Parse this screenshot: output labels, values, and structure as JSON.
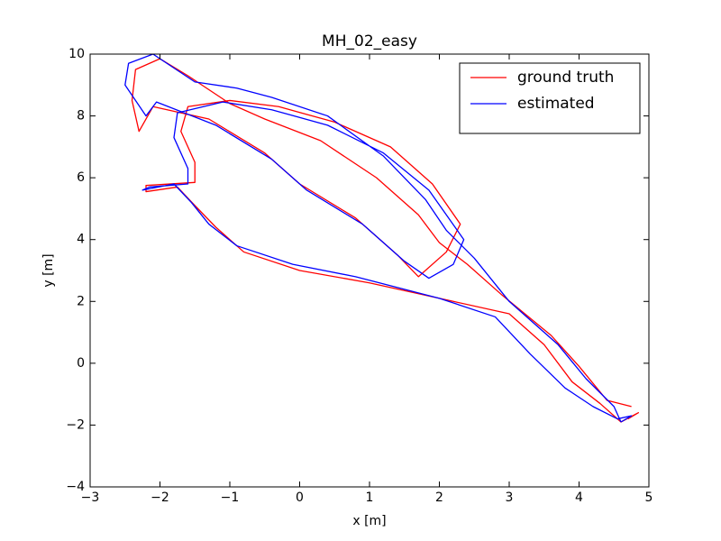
{
  "chart_data": {
    "type": "line",
    "title": "MH_02_easy",
    "xlabel": "x [m]",
    "ylabel": "y [m]",
    "xlim": [
      -3,
      5
    ],
    "ylim": [
      -4,
      10
    ],
    "xticks": [
      {
        "value": -3,
        "label": "−3"
      },
      {
        "value": -2,
        "label": "−2"
      },
      {
        "value": -1,
        "label": "−1"
      },
      0,
      1,
      2,
      3,
      4,
      5
    ],
    "yticks": [
      {
        "value": -4,
        "label": "−4"
      },
      {
        "value": -2,
        "label": "−2"
      },
      0,
      2,
      4,
      6,
      8,
      10
    ],
    "legend": "upper right",
    "series": [
      {
        "name": "ground truth",
        "color": "#ff0000",
        "x": [
          4.7,
          4.85,
          4.6,
          4.3,
          3.9,
          3.5,
          3.0,
          2.2,
          1.0,
          0.0,
          -0.8,
          -1.2,
          -1.5,
          -1.75,
          -2.2,
          -2.2,
          -1.5,
          -1.5,
          -1.7,
          -1.6,
          -1.0,
          -0.3,
          0.5,
          1.3,
          1.9,
          2.3,
          2.1,
          1.7,
          1.4,
          0.8,
          0.0,
          -0.5,
          -1.3,
          -2.1,
          -2.3,
          -2.4,
          -2.35,
          -2.0,
          -1.6,
          -1.0,
          -0.5,
          0.3,
          1.1,
          1.7,
          2.0,
          2.4,
          2.9,
          3.6,
          4.0,
          4.4,
          4.75
        ],
        "values": [
          -1.8,
          -1.6,
          -1.9,
          -1.3,
          -0.6,
          0.6,
          1.6,
          2.0,
          2.6,
          3.0,
          3.6,
          4.4,
          5.1,
          5.7,
          5.55,
          5.75,
          5.85,
          6.5,
          7.5,
          8.3,
          8.5,
          8.3,
          7.8,
          7.0,
          5.8,
          4.5,
          3.6,
          2.8,
          3.5,
          4.7,
          5.8,
          6.8,
          7.9,
          8.3,
          7.5,
          8.5,
          9.5,
          9.85,
          9.3,
          8.4,
          7.9,
          7.2,
          6.0,
          4.8,
          3.9,
          3.2,
          2.2,
          0.9,
          -0.1,
          -1.2,
          -1.4
        ]
      },
      {
        "name": "estimated",
        "color": "#0000ff",
        "x": [
          4.6,
          4.75,
          4.55,
          4.2,
          3.8,
          3.3,
          2.8,
          2.0,
          0.8,
          -0.1,
          -0.9,
          -1.3,
          -1.55,
          -1.8,
          -2.25,
          -2.15,
          -1.6,
          -1.6,
          -1.8,
          -1.75,
          -1.1,
          -0.4,
          0.4,
          1.2,
          1.85,
          2.35,
          2.2,
          1.85,
          1.5,
          0.9,
          0.1,
          -0.4,
          -1.2,
          -2.05,
          -2.2,
          -2.5,
          -2.45,
          -2.1,
          -1.5,
          -0.9,
          -0.4,
          0.4,
          1.2,
          1.8,
          2.1,
          2.5,
          3.0,
          3.7,
          4.1,
          4.5,
          4.6
        ],
        "values": [
          -1.9,
          -1.7,
          -1.8,
          -1.4,
          -0.8,
          0.3,
          1.5,
          2.1,
          2.8,
          3.2,
          3.8,
          4.5,
          5.2,
          5.8,
          5.6,
          5.7,
          5.8,
          6.3,
          7.3,
          8.1,
          8.45,
          8.2,
          7.7,
          6.8,
          5.6,
          4.0,
          3.2,
          2.75,
          3.3,
          4.5,
          5.6,
          6.6,
          7.7,
          8.45,
          8.0,
          9.0,
          9.7,
          10.0,
          9.1,
          8.9,
          8.6,
          8.0,
          6.7,
          5.3,
          4.3,
          3.4,
          2.0,
          0.6,
          -0.5,
          -1.4,
          -1.9
        ]
      }
    ]
  }
}
